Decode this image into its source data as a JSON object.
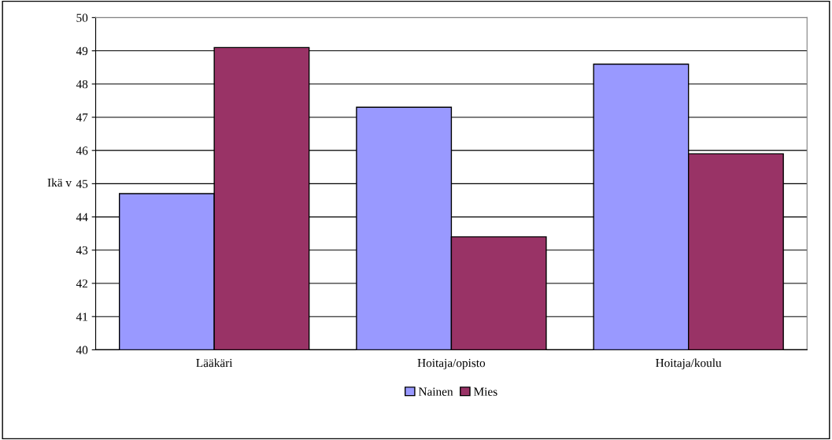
{
  "chart_data": {
    "type": "bar",
    "ylabel": "Ikä v",
    "categories": [
      "Lääkäri",
      "Hoitaja/opisto",
      "Hoitaja/koulu"
    ],
    "series": [
      {
        "name": "Nainen",
        "color": "#9999ff",
        "values": [
          44.7,
          47.3,
          48.6
        ]
      },
      {
        "name": "Mies",
        "color": "#993366",
        "values": [
          49.1,
          43.4,
          45.9
        ]
      }
    ],
    "ylim": [
      40,
      50
    ],
    "yticks": [
      40,
      41,
      42,
      43,
      44,
      45,
      46,
      47,
      48,
      49,
      50
    ],
    "grid": "y",
    "legend": "bottom"
  }
}
